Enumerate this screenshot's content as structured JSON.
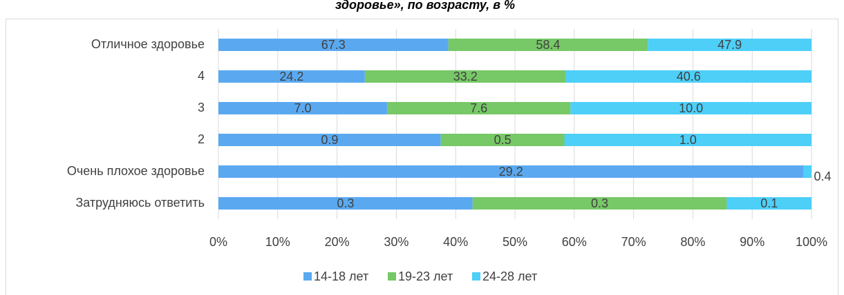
{
  "chart_data": {
    "type": "stacked_bar_100",
    "orientation": "horizontal",
    "title": "здоровье», по возрасту, в %",
    "categories": [
      "Отличное здоровье",
      "4",
      "3",
      "2",
      "Очень плохое здоровье",
      "Затрудняюсь ответить"
    ],
    "series": [
      {
        "name": "14-18 лет",
        "color": "#5aa9f0",
        "values": [
          67.3,
          24.2,
          7.0,
          0.9,
          29.2,
          0.3
        ],
        "value_labels": [
          "67.3",
          "24.2",
          "7.0",
          "0.9",
          "29.2",
          "0.3"
        ]
      },
      {
        "name": "19-23 лет",
        "color": "#77c867",
        "values": [
          58.4,
          33.2,
          7.6,
          0.5,
          null,
          0.3
        ],
        "value_labels": [
          "58.4",
          "33.2",
          "7.6",
          "0.5",
          null,
          "0.3"
        ]
      },
      {
        "name": "24-28 лет",
        "color": "#4dcff8",
        "values": [
          47.9,
          40.6,
          10.0,
          1.0,
          0.4,
          0.1
        ],
        "value_labels": [
          "47.9",
          "40.6",
          "10.0",
          "1.0",
          "0.4",
          "0.1"
        ]
      }
    ],
    "xlim": [
      0,
      100
    ],
    "xticks": [
      {
        "value": 0,
        "label": "0%"
      },
      {
        "value": 10,
        "label": "10%"
      },
      {
        "value": 20,
        "label": "20%"
      },
      {
        "value": 30,
        "label": "30%"
      },
      {
        "value": 40,
        "label": "40%"
      },
      {
        "value": 50,
        "label": "50%"
      },
      {
        "value": 60,
        "label": "60%"
      },
      {
        "value": 70,
        "label": "70%"
      },
      {
        "value": 80,
        "label": "80%"
      },
      {
        "value": 90,
        "label": "90%"
      },
      {
        "value": 100,
        "label": "100%"
      }
    ],
    "grid": true,
    "legend": "bottom"
  }
}
